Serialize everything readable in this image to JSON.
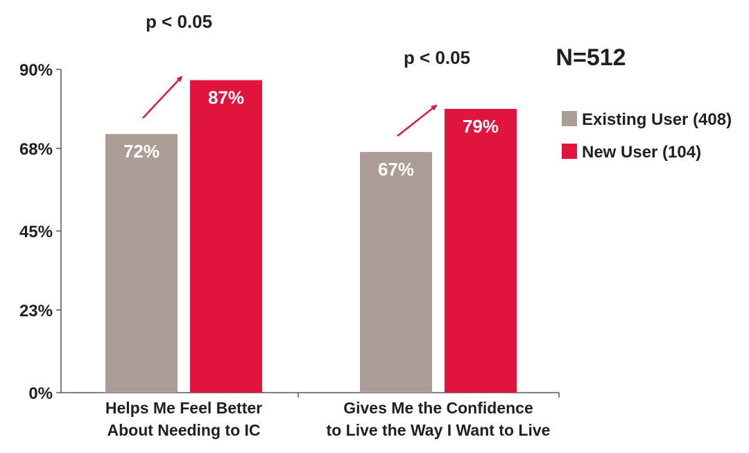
{
  "chart_data": {
    "type": "bar",
    "categories": [
      [
        "Helps Me Feel Better",
        "About Needing to IC"
      ],
      [
        "Gives Me the Confidence",
        "to Live the Way I Want to Live"
      ]
    ],
    "series": [
      {
        "name": "Existing User (408)",
        "values": [
          72,
          67
        ],
        "labels": [
          "72%",
          "67%"
        ],
        "color": "#ab9d95"
      },
      {
        "name": "New User (104)",
        "values": [
          87,
          79
        ],
        "labels": [
          "87%",
          "79%"
        ],
        "color": "#e0143c"
      }
    ],
    "ylim": [
      0,
      90
    ],
    "yticks": [
      0,
      23,
      45,
      68,
      90
    ],
    "ytick_labels": [
      "0%",
      "23%",
      "45%",
      "68%",
      "90%"
    ],
    "annotations": [
      "p < 0.05",
      "p < 0.05"
    ],
    "sample_size_label": "N=512",
    "arrow_color": "#e0143c",
    "axis_color": "#555555",
    "legend_position": "right",
    "grid": false
  }
}
